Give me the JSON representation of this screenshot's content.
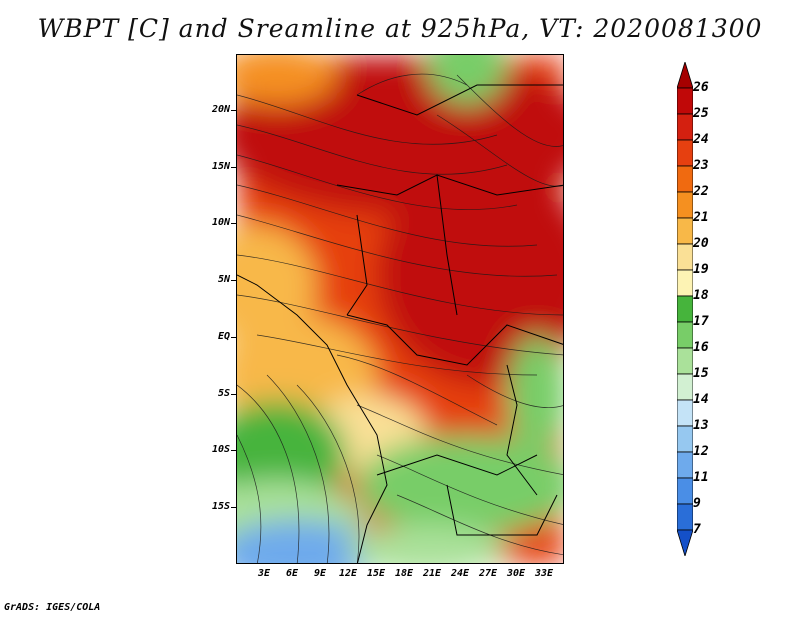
{
  "title": "WBPT [C] and Sreamline at 925hPa, VT: 2020081300",
  "footer": "GrADS: IGES/COLA",
  "lat_labels": [
    "20N",
    "15N",
    "10N",
    "5N",
    "EQ",
    "5S",
    "10S",
    "15S"
  ],
  "lon_labels": [
    "3E",
    "6E",
    "9E",
    "12E",
    "15E",
    "18E",
    "21E",
    "24E",
    "27E",
    "30E",
    "33E"
  ],
  "colorbar": {
    "labels": [
      "26",
      "25",
      "24",
      "23",
      "22",
      "21",
      "20",
      "19",
      "18",
      "17",
      "16",
      "15",
      "14",
      "13",
      "12",
      "11",
      "9",
      "7"
    ],
    "colors": [
      "#a50000",
      "#c00808",
      "#d42010",
      "#e64010",
      "#f06a10",
      "#f59020",
      "#f8b848",
      "#fae096",
      "#fdf3b4",
      "#46b43c",
      "#78cd68",
      "#aae19a",
      "#d2f0d2",
      "#c4e3f7",
      "#96c8f0",
      "#6eaaec",
      "#4a8ee6",
      "#2a6ed8",
      "#1450c8"
    ]
  }
}
